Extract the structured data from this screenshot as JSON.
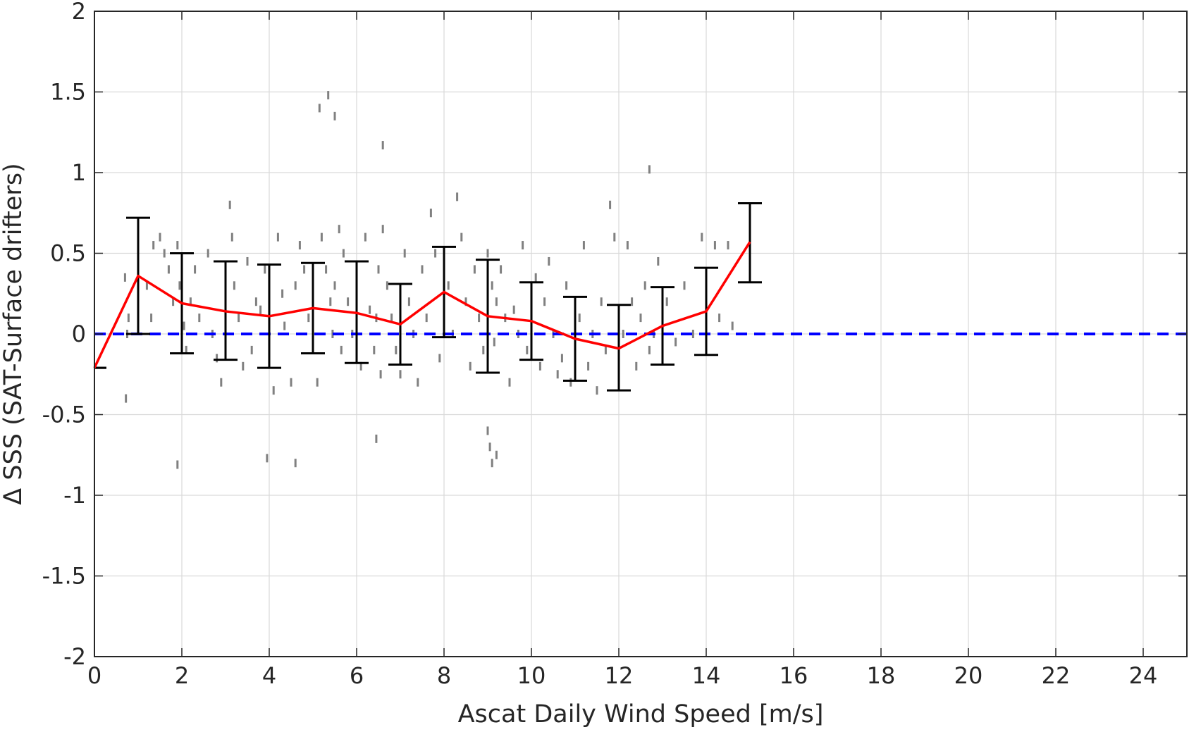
{
  "chart_data": {
    "type": "scatter",
    "title": "",
    "xlabel": "Ascat Daily Wind Speed [m/s]",
    "ylabel": "Δ SSS (SAT-Surface drifters)",
    "xlim": [
      0,
      25
    ],
    "ylim": [
      -2,
      2
    ],
    "xticks": [
      0,
      2,
      4,
      6,
      8,
      10,
      12,
      14,
      16,
      18,
      20,
      22,
      24
    ],
    "yticks": [
      -2,
      -1.5,
      -1,
      -0.5,
      0,
      0.5,
      1,
      1.5,
      2
    ],
    "ytick_labels": [
      "-2",
      "-1.5",
      "-1",
      "-0.5",
      "0",
      "0.5",
      "1",
      "1.5",
      "2"
    ],
    "grid": true,
    "colors": {
      "scatter": "#808080",
      "mean_line": "#ff0000",
      "error_bars": "#000000",
      "reference_line": "#0000ff",
      "grid": "#d9d9d9",
      "axes": "#262626"
    },
    "mean_line": {
      "x": [
        0,
        1,
        2,
        3,
        4,
        5,
        6,
        7,
        8,
        9,
        10,
        11,
        12,
        13,
        14,
        15
      ],
      "y": [
        -0.21,
        0.36,
        0.19,
        0.14,
        0.11,
        0.16,
        0.13,
        0.06,
        0.26,
        0.11,
        0.08,
        -0.03,
        -0.09,
        0.05,
        0.14,
        0.57
      ]
    },
    "error_bars": {
      "x": [
        0,
        1,
        2,
        3,
        4,
        5,
        6,
        7,
        8,
        9,
        10,
        11,
        12,
        13,
        14,
        15
      ],
      "lower": [
        -0.21,
        0.0,
        -0.12,
        -0.16,
        -0.21,
        -0.12,
        -0.18,
        -0.19,
        -0.02,
        -0.24,
        -0.16,
        -0.29,
        -0.35,
        -0.19,
        -0.13,
        0.32
      ],
      "upper": [
        -0.21,
        0.72,
        0.5,
        0.45,
        0.43,
        0.44,
        0.45,
        0.31,
        0.54,
        0.46,
        0.32,
        0.23,
        0.18,
        0.29,
        0.41,
        0.81
      ]
    },
    "reference_line": {
      "y": 0,
      "style": "dashed"
    },
    "scatter_points": {
      "x": [
        0.7,
        0.75,
        0.72,
        0.78,
        1.2,
        1.3,
        1.35,
        1.5,
        1.6,
        1.7,
        1.8,
        1.9,
        1.95,
        2.05,
        2.1,
        2.2,
        2.3,
        2.4,
        2.6,
        2.7,
        2.8,
        2.9,
        3.0,
        3.1,
        3.15,
        3.2,
        3.3,
        3.4,
        3.5,
        3.6,
        3.7,
        3.8,
        3.9,
        4.1,
        4.2,
        4.3,
        4.35,
        4.5,
        4.6,
        4.7,
        4.8,
        4.9,
        5.0,
        5.1,
        5.2,
        5.3,
        5.4,
        5.45,
        5.5,
        5.6,
        5.65,
        5.7,
        5.8,
        5.9,
        6.0,
        6.1,
        6.2,
        6.3,
        6.4,
        6.45,
        6.5,
        6.55,
        6.6,
        6.7,
        6.8,
        6.9,
        7.0,
        7.1,
        7.2,
        7.3,
        7.4,
        7.5,
        7.6,
        7.7,
        7.8,
        7.9,
        8.1,
        8.2,
        8.3,
        8.4,
        8.5,
        8.6,
        8.7,
        8.8,
        8.9,
        9.0,
        9.1,
        9.15,
        9.2,
        9.3,
        9.4,
        9.5,
        9.6,
        9.7,
        9.8,
        9.9,
        10.1,
        10.2,
        10.3,
        10.4,
        10.5,
        10.6,
        10.7,
        10.8,
        10.9,
        11.1,
        11.2,
        11.3,
        11.4,
        11.5,
        11.6,
        11.7,
        11.8,
        11.9,
        12.0,
        12.1,
        12.2,
        12.3,
        12.4,
        12.5,
        12.6,
        12.7,
        12.8,
        12.9,
        13.1,
        13.3,
        13.5,
        13.7,
        13.9,
        14.2,
        14.3,
        14.5,
        14.6,
        4.6,
        5.15,
        9.0,
        9.05,
        9.1,
        9.2,
        6.45,
        3.95,
        1.9,
        5.35,
        5.5,
        6.6,
        12.7
      ],
      "y": [
        0.35,
        0.0,
        -0.4,
        0.1,
        0.3,
        0.1,
        0.55,
        0.6,
        0.5,
        0.4,
        0.2,
        0.55,
        0.3,
        0.05,
        -0.1,
        0.2,
        0.4,
        0.1,
        0.5,
        0.0,
        -0.15,
        -0.3,
        0.35,
        0.8,
        0.6,
        0.3,
        0.1,
        -0.2,
        0.45,
        -0.1,
        0.2,
        0.15,
        0.4,
        -0.35,
        0.6,
        0.25,
        0.05,
        -0.3,
        0.3,
        0.55,
        0.4,
        0.1,
        0.3,
        -0.3,
        0.6,
        0.4,
        0.2,
        0.0,
        0.3,
        0.65,
        -0.1,
        0.5,
        0.2,
        0.0,
        0.35,
        -0.2,
        0.6,
        0.15,
        -0.1,
        0.1,
        0.4,
        -0.25,
        0.65,
        0.3,
        0.1,
        -0.1,
        -0.25,
        0.5,
        0.2,
        0.0,
        -0.3,
        0.4,
        0.1,
        0.75,
        0.5,
        -0.15,
        0.3,
        0.0,
        0.85,
        0.6,
        0.2,
        -0.2,
        0.4,
        0.1,
        -0.1,
        0.5,
        0.3,
        -0.05,
        0.2,
        0.4,
        0.1,
        -0.3,
        0.15,
        0.0,
        0.55,
        -0.1,
        0.35,
        -0.2,
        0.2,
        0.45,
        0.0,
        -0.25,
        -0.15,
        0.3,
        -0.3,
        0.1,
        0.55,
        -0.2,
        0.0,
        -0.35,
        0.2,
        -0.1,
        0.8,
        0.6,
        -0.3,
        0.0,
        0.55,
        0.2,
        -0.2,
        0.1,
        0.3,
        -0.1,
        0.0,
        0.45,
        0.2,
        -0.05,
        0.3,
        0.0,
        0.6,
        0.55,
        0.1,
        0.55,
        0.05,
        -0.8,
        1.4,
        -0.6,
        -0.7,
        -0.8,
        -0.75,
        -0.65,
        -0.77,
        -0.81,
        1.48,
        1.35,
        1.17,
        1.02
      ]
    }
  }
}
